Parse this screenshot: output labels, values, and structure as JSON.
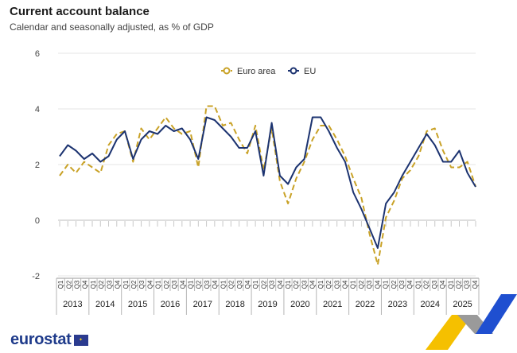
{
  "chart_data": {
    "type": "line",
    "title": "Current account balance",
    "subtitle": "Calendar and seasonally adjusted, as % of GDP",
    "ylim": [
      -2,
      6
    ],
    "yticks": [
      "-2",
      "0",
      "2",
      "4",
      "6"
    ],
    "years": [
      "2013",
      "2014",
      "2015",
      "2016",
      "2017",
      "2018",
      "2019",
      "2020",
      "2021",
      "2022",
      "2023",
      "2024",
      "2025"
    ],
    "quarters": [
      "Q1",
      "Q2",
      "Q3",
      "Q4"
    ],
    "series": [
      {
        "name": "Euro area",
        "color": "#c9a227",
        "dash": true,
        "values": [
          1.6,
          2.0,
          1.7,
          2.1,
          1.9,
          1.7,
          2.7,
          3.1,
          3.2,
          2.1,
          3.3,
          2.9,
          3.3,
          3.7,
          3.3,
          3.1,
          3.2,
          1.9,
          4.1,
          4.1,
          3.4,
          3.5,
          2.9,
          2.4,
          3.4,
          1.8,
          3.3,
          1.4,
          0.6,
          1.5,
          2.1,
          2.9,
          3.4,
          3.4,
          2.9,
          2.3,
          1.5,
          0.8,
          -0.5,
          -1.6,
          0.1,
          0.7,
          1.5,
          1.8,
          2.3,
          3.2,
          3.3,
          2.5,
          1.9,
          1.9,
          2.1,
          1.2
        ]
      },
      {
        "name": "EU",
        "color": "#1c3370",
        "dash": false,
        "values": [
          2.3,
          2.7,
          2.5,
          2.2,
          2.4,
          2.1,
          2.3,
          2.9,
          3.2,
          2.2,
          2.9,
          3.2,
          3.1,
          3.4,
          3.2,
          3.3,
          2.9,
          2.2,
          3.7,
          3.6,
          3.3,
          3.0,
          2.6,
          2.6,
          3.2,
          1.6,
          3.5,
          1.6,
          1.3,
          1.9,
          2.2,
          3.7,
          3.7,
          3.2,
          2.6,
          2.1,
          1.0,
          0.4,
          -0.3,
          -1.0,
          0.6,
          1.0,
          1.6,
          2.1,
          2.6,
          3.1,
          2.7,
          2.1,
          2.1,
          2.5,
          1.7,
          1.2
        ]
      }
    ]
  },
  "footer": {
    "logo_text": "eurostat"
  }
}
